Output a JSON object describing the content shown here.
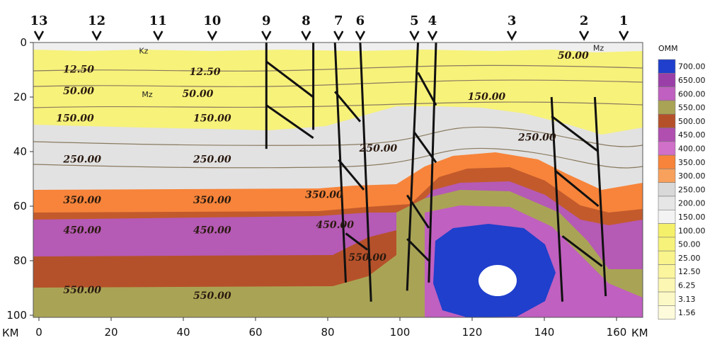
{
  "chart_data": {
    "type": "geologic-cross-section",
    "x_unit": "КМ",
    "xlim": [
      0,
      163
    ],
    "x_ticks": [
      "0",
      "20",
      "40",
      "60",
      "80",
      "100",
      "120",
      "140",
      "160"
    ],
    "x_unit_labels": [
      "КМ",
      "КМ"
    ],
    "ylim": [
      0,
      100
    ],
    "y_ticks": [
      "0",
      "20",
      "40",
      "60",
      "80",
      "100"
    ],
    "profiles": [
      {
        "label": "13",
        "x": 0
      },
      {
        "label": "12",
        "x": 16
      },
      {
        "label": "11",
        "x": 33
      },
      {
        "label": "10",
        "x": 48
      },
      {
        "label": "9",
        "x": 63
      },
      {
        "label": "8",
        "x": 74
      },
      {
        "label": "7",
        "x": 83
      },
      {
        "label": "6",
        "x": 89
      },
      {
        "label": "5",
        "x": 104
      },
      {
        "label": "4",
        "x": 109
      },
      {
        "label": "3",
        "x": 131
      },
      {
        "label": "2",
        "x": 151
      },
      {
        "label": "1",
        "x": 162
      }
    ],
    "isoline_labels": [
      {
        "text": "12.50",
        "x": 11,
        "y": 11
      },
      {
        "text": "12.50",
        "x": 46,
        "y": 12
      },
      {
        "text": "50.00",
        "x": 11,
        "y": 19
      },
      {
        "text": "50.00",
        "x": 44,
        "y": 20
      },
      {
        "text": "50.00",
        "x": 148,
        "y": 6
      },
      {
        "text": "150.00",
        "x": 10,
        "y": 29
      },
      {
        "text": "150.00",
        "x": 48,
        "y": 29
      },
      {
        "text": "150.00",
        "x": 124,
        "y": 21
      },
      {
        "text": "250.00",
        "x": 12,
        "y": 44
      },
      {
        "text": "250.00",
        "x": 48,
        "y": 44
      },
      {
        "text": "250.00",
        "x": 94,
        "y": 40
      },
      {
        "text": "250.00",
        "x": 138,
        "y": 36
      },
      {
        "text": "350.00",
        "x": 12,
        "y": 59
      },
      {
        "text": "350.00",
        "x": 48,
        "y": 59
      },
      {
        "text": "350.00",
        "x": 79,
        "y": 57
      },
      {
        "text": "450.00",
        "x": 12,
        "y": 70
      },
      {
        "text": "450.00",
        "x": 48,
        "y": 70
      },
      {
        "text": "450.00",
        "x": 82,
        "y": 68
      },
      {
        "text": "550.00",
        "x": 12,
        "y": 92
      },
      {
        "text": "550.00",
        "x": 48,
        "y": 94
      },
      {
        "text": "550.00",
        "x": 91,
        "y": 80
      }
    ],
    "layer_labels": [
      {
        "text": "Kz",
        "x": 29,
        "y": 4
      },
      {
        "text": "Mz",
        "x": 30,
        "y": 20
      },
      {
        "text": "Mz",
        "x": 155,
        "y": 3
      }
    ],
    "legend": {
      "title": "ОММ",
      "entries": [
        {
          "label": "700.00",
          "color": "#1f3fcc"
        },
        {
          "label": "650.00",
          "color": "#9a3fa8"
        },
        {
          "label": "600.00",
          "color": "#c060c0"
        },
        {
          "label": "550.00",
          "color": "#a9a455"
        },
        {
          "label": "500.00",
          "color": "#b5512a"
        },
        {
          "label": "450.00",
          "color": "#b04fb0"
        },
        {
          "label": "400.00",
          "color": "#d070c8"
        },
        {
          "label": "350.00",
          "color": "#f7843a"
        },
        {
          "label": "300.00",
          "color": "#f8a15c"
        },
        {
          "label": "250.00",
          "color": "#d9d9d9"
        },
        {
          "label": "200.00",
          "color": "#e6e6e6"
        },
        {
          "label": "150.00",
          "color": "#f3f3f3"
        },
        {
          "label": "100.00",
          "color": "#f5f06a"
        },
        {
          "label": "50.00",
          "color": "#f7f27a"
        },
        {
          "label": "25.00",
          "color": "#f9f48c"
        },
        {
          "label": "12.50",
          "color": "#fbf59e"
        },
        {
          "label": "6.25",
          "color": "#fcf7b2"
        },
        {
          "label": "3.13",
          "color": "#fdf9c6"
        },
        {
          "label": "1.56",
          "color": "#fefbdc"
        }
      ]
    },
    "faults": [
      {
        "x1": 63,
        "y1": 0,
        "x2": 63,
        "y2": 39
      },
      {
        "x1": 76,
        "y1": 0,
        "x2": 76,
        "y2": 32
      },
      {
        "x1": 63,
        "y1": 7,
        "x2": 76,
        "y2": 20
      },
      {
        "x1": 63,
        "y1": 23,
        "x2": 76,
        "y2": 35
      },
      {
        "x1": 82,
        "y1": 0,
        "x2": 85,
        "y2": 88
      },
      {
        "x1": 89,
        "y1": 0,
        "x2": 92,
        "y2": 95
      },
      {
        "x1": 82,
        "y1": 18,
        "x2": 89,
        "y2": 29
      },
      {
        "x1": 83,
        "y1": 43,
        "x2": 90,
        "y2": 54
      },
      {
        "x1": 85,
        "y1": 70,
        "x2": 91,
        "y2": 76
      },
      {
        "x1": 105,
        "y1": 0,
        "x2": 102,
        "y2": 91
      },
      {
        "x1": 110,
        "y1": 0,
        "x2": 108,
        "y2": 88
      },
      {
        "x1": 105,
        "y1": 11,
        "x2": 110,
        "y2": 23
      },
      {
        "x1": 104,
        "y1": 33,
        "x2": 110,
        "y2": 44
      },
      {
        "x1": 102,
        "y1": 56,
        "x2": 108,
        "y2": 68
      },
      {
        "x1": 102,
        "y1": 72,
        "x2": 108,
        "y2": 80
      },
      {
        "x1": 142,
        "y1": 20,
        "x2": 145,
        "y2": 95
      },
      {
        "x1": 154,
        "y1": 20,
        "x2": 157,
        "y2": 93
      },
      {
        "x1": 142,
        "y1": 27,
        "x2": 155,
        "y2": 40
      },
      {
        "x1": 143,
        "y1": 47,
        "x2": 155,
        "y2": 60
      },
      {
        "x1": 145,
        "y1": 71,
        "x2": 156,
        "y2": 82
      }
    ]
  }
}
